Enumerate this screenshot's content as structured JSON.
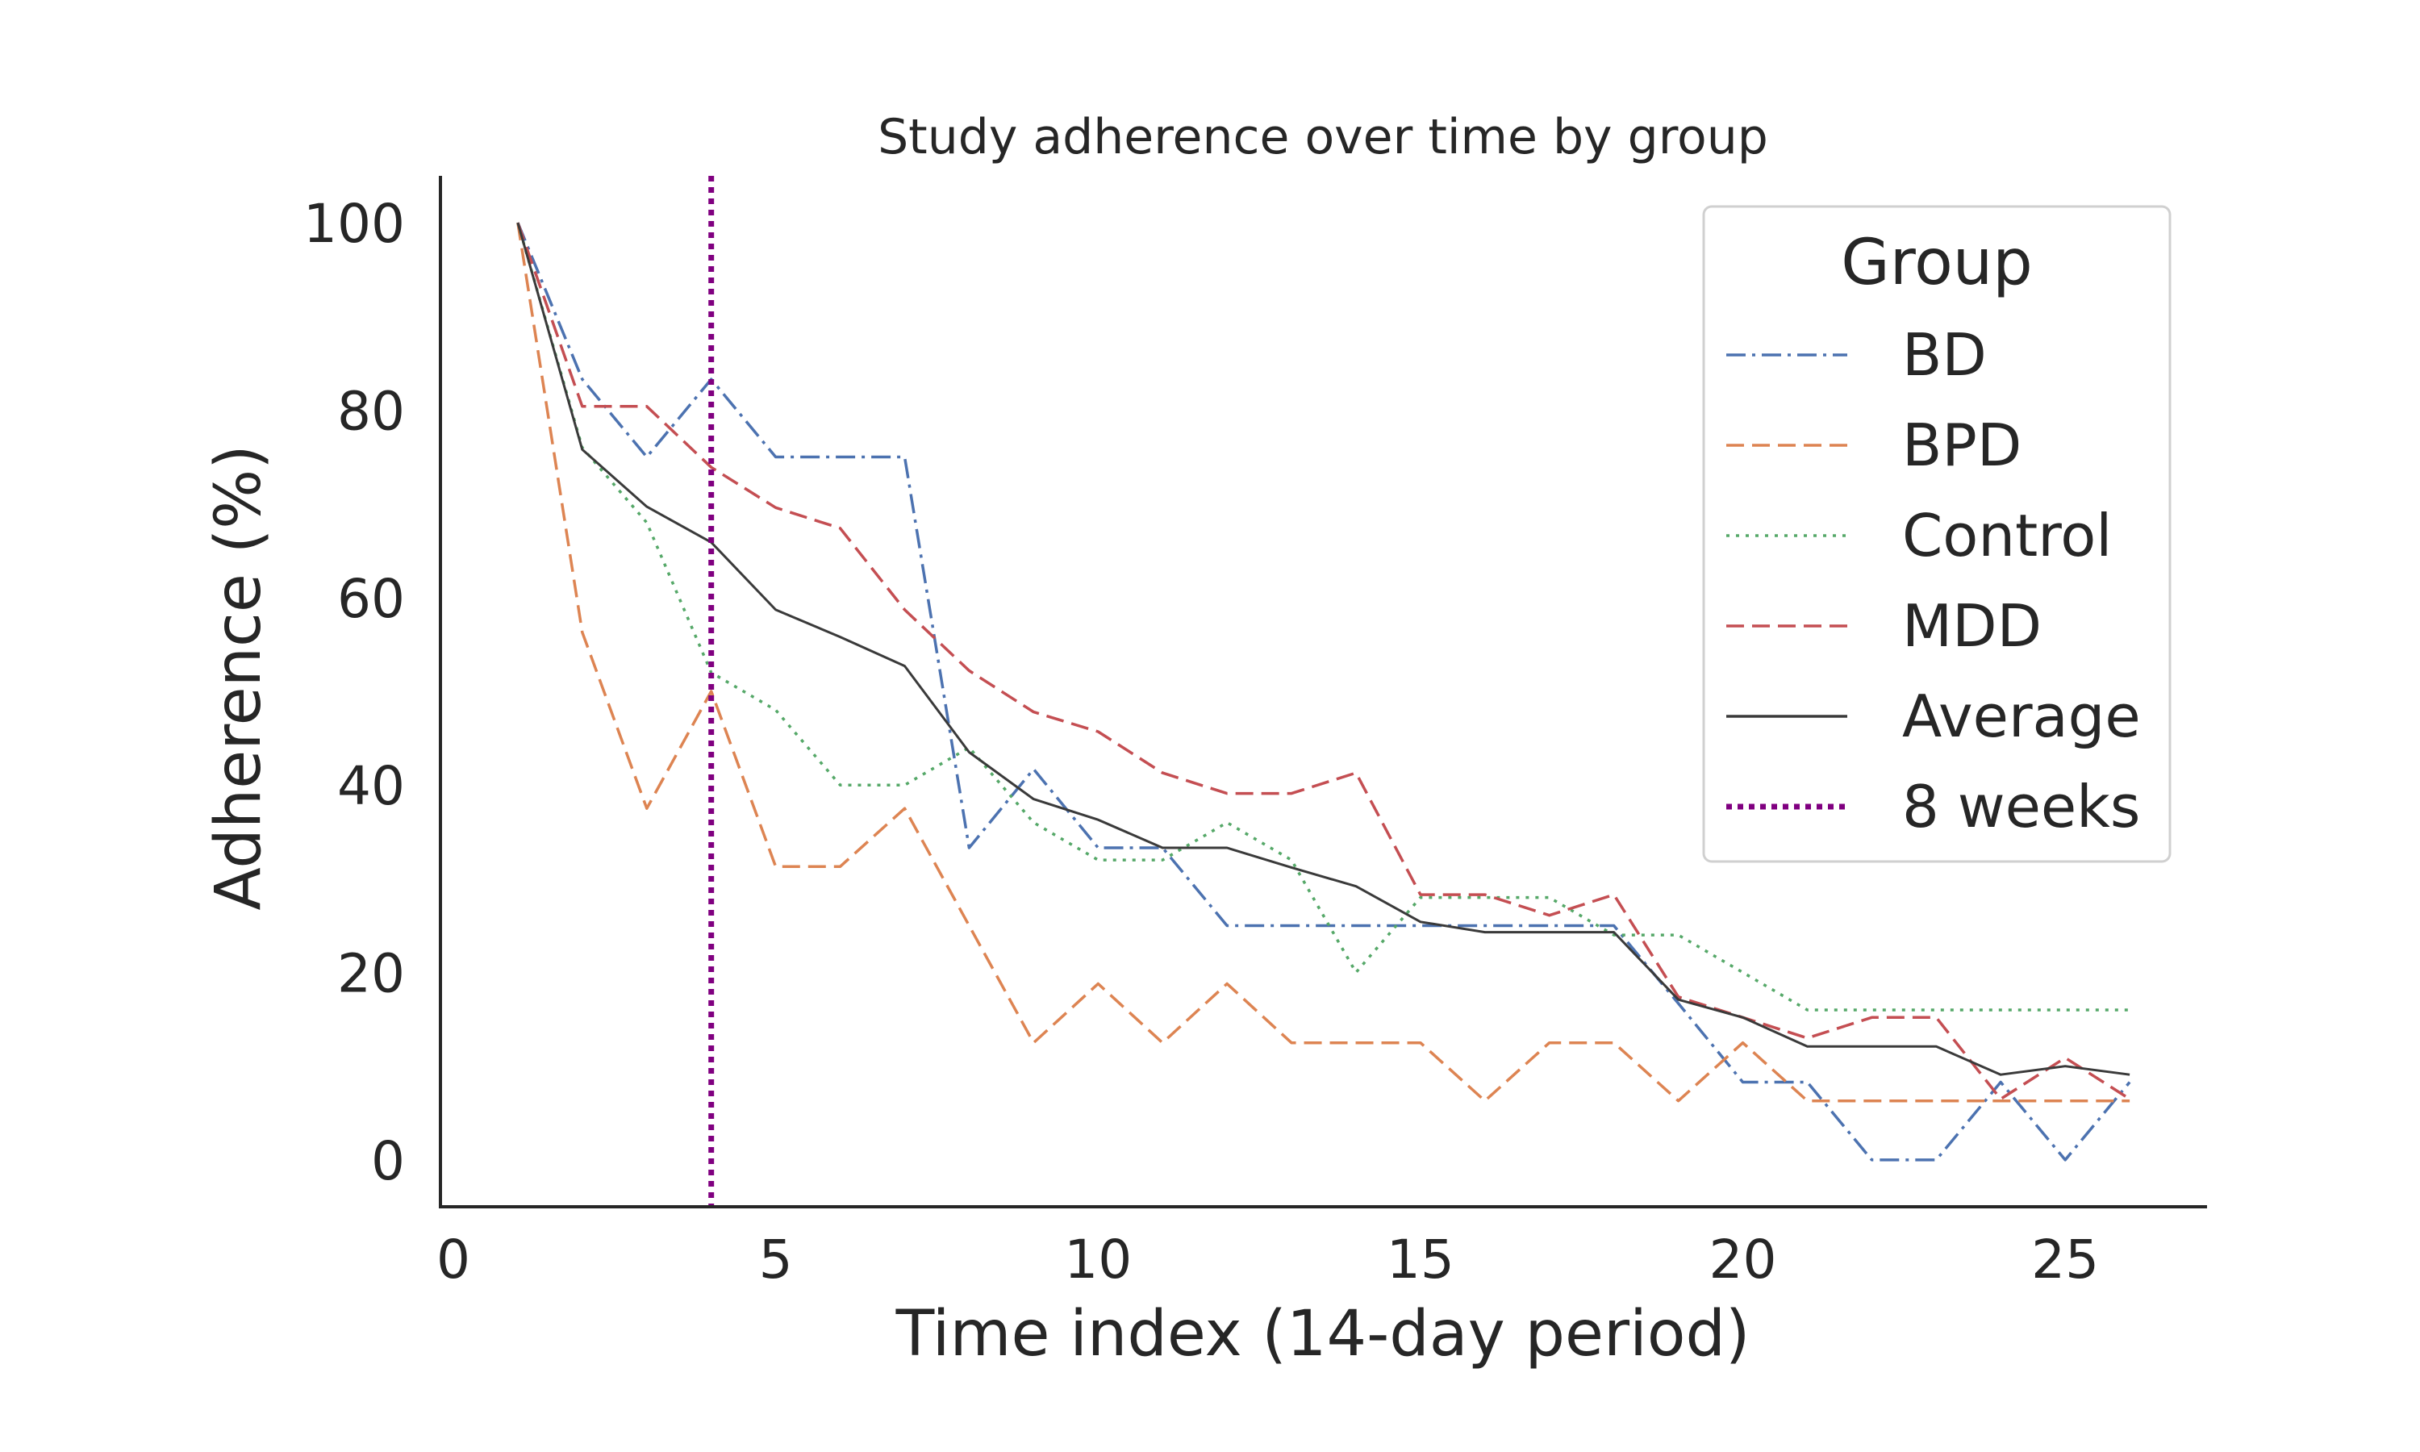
{
  "chart_data": {
    "type": "line",
    "title": "Study adherence over time by group",
    "xlabel": "Time index (14-day period)",
    "ylabel": "Adherence (%)",
    "xlim": [
      -0.2,
      27.2
    ],
    "ylim": [
      -5,
      105
    ],
    "xticks": [
      0,
      5,
      10,
      15,
      20,
      25
    ],
    "yticks": [
      0,
      20,
      40,
      60,
      80,
      100
    ],
    "grid": false,
    "legend": {
      "title": "Group",
      "position": "top-right"
    },
    "x": [
      1,
      2,
      3,
      4,
      5,
      6,
      7,
      8,
      9,
      10,
      11,
      12,
      13,
      14,
      15,
      16,
      17,
      18,
      19,
      20,
      21,
      22,
      23,
      24,
      25,
      26
    ],
    "series": [
      {
        "name": "BD",
        "color": "#4c72b0",
        "dash": "dashdot",
        "values": [
          100,
          83.3,
          75,
          83.3,
          75,
          75,
          75,
          33.3,
          41.7,
          33.3,
          33.3,
          25,
          25,
          25,
          25,
          25,
          25,
          25,
          16.7,
          8.3,
          8.3,
          0,
          0,
          8.3,
          0,
          8.3
        ]
      },
      {
        "name": "BPD",
        "color": "#dd8452",
        "dash": "dashed",
        "values": [
          100,
          56.3,
          37.5,
          50,
          31.3,
          31.3,
          37.5,
          25,
          12.5,
          18.8,
          12.5,
          18.8,
          12.5,
          12.5,
          12.5,
          6.3,
          12.5,
          12.5,
          6.3,
          12.5,
          6.3,
          6.3,
          6.3,
          6.3,
          6.3,
          6.3
        ]
      },
      {
        "name": "Control",
        "color": "#55a868",
        "dash": "dotted",
        "values": [
          100,
          76,
          68,
          52,
          48,
          40,
          40,
          44,
          36,
          32,
          32,
          36,
          32,
          20,
          28,
          28,
          28,
          24,
          24,
          20,
          16,
          16,
          16,
          16,
          16,
          16
        ]
      },
      {
        "name": "MDD",
        "color": "#c44e52",
        "dash": "dashed",
        "values": [
          100,
          80.4,
          80.4,
          73.9,
          69.6,
          67.4,
          58.7,
          52.2,
          47.8,
          45.7,
          41.3,
          39.1,
          39.1,
          41.3,
          28.3,
          28.3,
          26.1,
          28.3,
          17.4,
          15.2,
          13,
          15.2,
          15.2,
          6.5,
          10.9,
          6.5
        ]
      },
      {
        "name": "Average",
        "color": "#3a3a3a",
        "dash": "solid",
        "values": [
          100,
          75.8,
          69.7,
          65.9,
          58.7,
          55.8,
          52.7,
          43.5,
          38.5,
          36.3,
          33.3,
          33.3,
          31.2,
          29.2,
          25.4,
          24.3,
          24.3,
          24.3,
          17.1,
          15.2,
          12.1,
          12.1,
          12.1,
          9.1,
          10,
          9.1
        ]
      }
    ],
    "annotations": [
      {
        "type": "vline",
        "name": "8 weeks",
        "x": 4,
        "color": "#800080",
        "dash": "dotted"
      }
    ]
  }
}
